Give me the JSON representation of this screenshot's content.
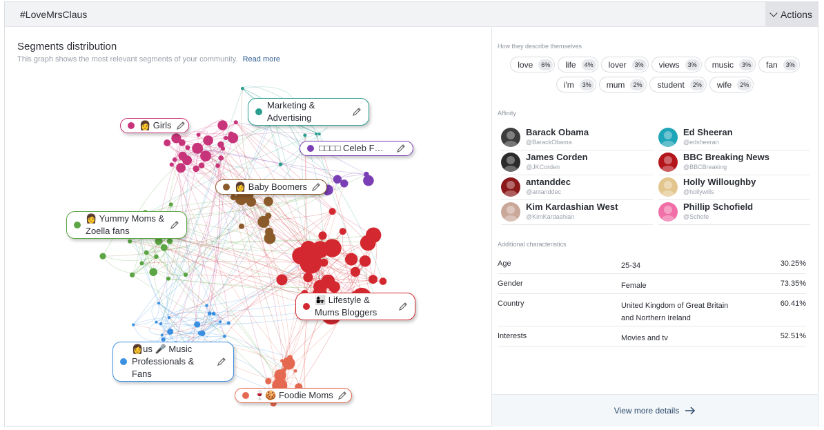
{
  "header": {
    "title": "#LoveMrsClaus",
    "actions_label": "Actions"
  },
  "segments": {
    "title": "Segments distribution",
    "subtitle": "This graph shows the most relevant segments of your community.",
    "read_more": "Read more",
    "labels": [
      {
        "id": "girls",
        "text": "👩 Girls",
        "color": "#c8347a"
      },
      {
        "id": "marketing",
        "text": "Marketing & Advertising",
        "color": "#2a9d8f"
      },
      {
        "id": "celeb",
        "text": "□□□□ Celeb F…",
        "color": "#7b3fb5"
      },
      {
        "id": "boomers",
        "text": "👩 Baby Boomers",
        "color": "#8b5a2b"
      },
      {
        "id": "yummy",
        "text": "👩 Yummy Moms & Zoella fans",
        "color": "#5ba544"
      },
      {
        "id": "lifestyle",
        "text": "👩‍👧 Lifestyle & Mums Bloggers",
        "color": "#d3282f"
      },
      {
        "id": "music",
        "text": "👩us 🎤 Music Professionals & Fans",
        "color": "#3b8fe0"
      },
      {
        "id": "foodie",
        "text": "🍷🍪 Foodie Moms",
        "color": "#e56950"
      }
    ]
  },
  "describe": {
    "heading": "How they describe themselves",
    "tags_row1": [
      {
        "word": "love",
        "pct": "6%"
      },
      {
        "word": "life",
        "pct": "4%"
      },
      {
        "word": "lover",
        "pct": "3%"
      },
      {
        "word": "views",
        "pct": "3%"
      },
      {
        "word": "music",
        "pct": "3%"
      },
      {
        "word": "fan",
        "pct": "3%"
      }
    ],
    "tags_row2": [
      {
        "word": "i'm",
        "pct": "3%"
      },
      {
        "word": "mum",
        "pct": "2%"
      },
      {
        "word": "student",
        "pct": "2%"
      },
      {
        "word": "wife",
        "pct": "2%"
      }
    ]
  },
  "affinity": {
    "heading": "Affinity",
    "people": [
      {
        "name": "Barack Obama",
        "handle": "@BarackObama",
        "avatar": "#3d3d3d"
      },
      {
        "name": "Ed Sheeran",
        "handle": "@edsheeran",
        "avatar": "#1fa5b8"
      },
      {
        "name": "James Corden",
        "handle": "@JKCorden",
        "avatar": "#2b2b2b"
      },
      {
        "name": "BBC Breaking News",
        "handle": "@BBCBreaking",
        "avatar": "#b3151b"
      },
      {
        "name": "antanddec",
        "handle": "@antanddec",
        "avatar": "#8a1a1a"
      },
      {
        "name": "Holly Willoughby",
        "handle": "@hollywills",
        "avatar": "#e3c68e"
      },
      {
        "name": "Kim Kardashian West",
        "handle": "@KimKardashian",
        "avatar": "#c9a89a"
      },
      {
        "name": "Phillip Schofield",
        "handle": "@Schofe",
        "avatar": "#f06fa6"
      }
    ]
  },
  "characteristics": {
    "heading": "Additional characteristics",
    "rows": [
      {
        "key": "Age",
        "value": "25-34",
        "pct": "30.25%"
      },
      {
        "key": "Gender",
        "value": "Female",
        "pct": "73.35%"
      },
      {
        "key": "Country",
        "value": "United Kingdom of Great Britain and Northern Ireland",
        "pct": "60.41%"
      },
      {
        "key": "Interests",
        "value": "Movies and tv",
        "pct": "52.51%"
      }
    ]
  },
  "footer": {
    "view_more": "View more details"
  }
}
